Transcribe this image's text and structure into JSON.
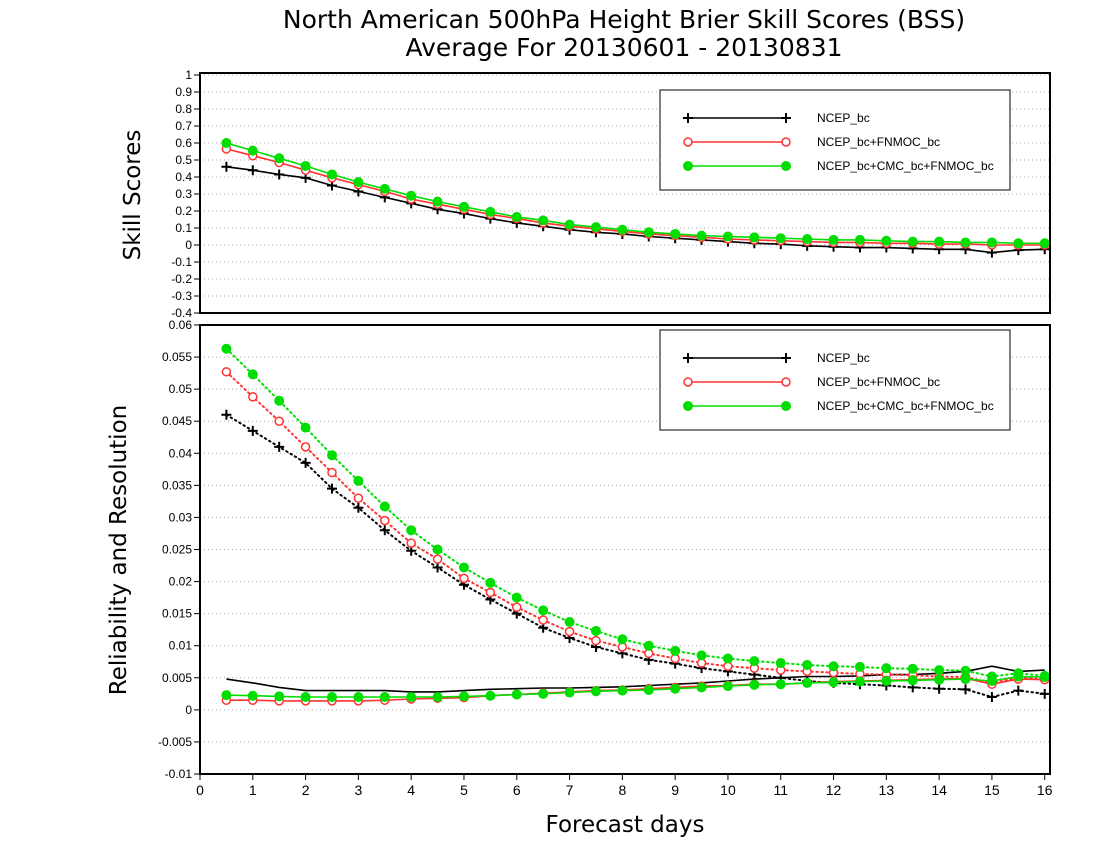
{
  "page": {
    "title_line1": "North American 500hPa Height Brier Skill Scores (BSS)",
    "title_line2": "Average For 20130601 - 20130831",
    "xlabel": "Forecast days"
  },
  "colors": {
    "NCEP_bc": "#000000",
    "NCEP_bc+FNMOC_bc": "#ff3333",
    "NCEP_bc+CMC_bc+FNMOC_bc": "#00dd00",
    "grid": "#aaaaaa"
  },
  "chart_data": [
    {
      "type": "line",
      "ylabel": "Skill Scores",
      "xlim": [
        0,
        16.1
      ],
      "ylim": [
        -0.4,
        1
      ],
      "x_ticks": [
        0,
        1,
        2,
        3,
        4,
        5,
        6,
        7,
        8,
        9,
        10,
        11,
        12,
        13,
        14,
        15,
        16
      ],
      "y_ticks": [
        "1",
        "0.9",
        "0.8",
        "0.7",
        "0.6",
        "0.5",
        "0.4",
        "0.3",
        "0.2",
        "0.1",
        "0",
        "-0.1",
        "-0.2",
        "-0.3",
        "-0.4"
      ],
      "grid": true,
      "legend_position": "top-right",
      "x": [
        0.5,
        1,
        1.5,
        2,
        2.5,
        3,
        3.5,
        4,
        4.5,
        5,
        5.5,
        6,
        6.5,
        7,
        7.5,
        8,
        8.5,
        9,
        9.5,
        10,
        10.5,
        11,
        11.5,
        12,
        12.5,
        13,
        13.5,
        14,
        14.5,
        15,
        15.5,
        16
      ],
      "series": [
        {
          "name": "NCEP_bc",
          "style": "solid",
          "marker": "plus",
          "values": [
            0.46,
            0.44,
            0.415,
            0.395,
            0.35,
            0.315,
            0.28,
            0.245,
            0.21,
            0.185,
            0.155,
            0.13,
            0.11,
            0.09,
            0.075,
            0.065,
            0.05,
            0.04,
            0.03,
            0.02,
            0.01,
            0.005,
            -0.005,
            -0.01,
            -0.015,
            -0.015,
            -0.02,
            -0.025,
            -0.025,
            -0.045,
            -0.03,
            -0.025
          ]
        },
        {
          "name": "NCEP_bc+FNMOC_bc",
          "style": "solid",
          "marker": "open-circle",
          "values": [
            0.565,
            0.525,
            0.485,
            0.44,
            0.395,
            0.355,
            0.315,
            0.27,
            0.24,
            0.21,
            0.18,
            0.155,
            0.13,
            0.11,
            0.095,
            0.08,
            0.065,
            0.055,
            0.045,
            0.035,
            0.03,
            0.025,
            0.02,
            0.015,
            0.015,
            0.01,
            0.01,
            0.005,
            0.005,
            0.0,
            0.0,
            0.0
          ]
        },
        {
          "name": "NCEP_bc+CMC_bc+FNMOC_bc",
          "style": "solid",
          "marker": "filled-circle",
          "values": [
            0.6,
            0.555,
            0.51,
            0.465,
            0.415,
            0.37,
            0.33,
            0.29,
            0.255,
            0.225,
            0.195,
            0.165,
            0.145,
            0.12,
            0.105,
            0.09,
            0.075,
            0.065,
            0.055,
            0.05,
            0.045,
            0.04,
            0.035,
            0.03,
            0.03,
            0.025,
            0.02,
            0.02,
            0.015,
            0.015,
            0.01,
            0.01
          ]
        }
      ]
    },
    {
      "type": "line",
      "ylabel": "Reliability and Resolution",
      "xlabel": "Forecast days",
      "xlim": [
        0,
        16.1
      ],
      "ylim": [
        -0.01,
        0.06
      ],
      "x_ticks": [
        0,
        1,
        2,
        3,
        4,
        5,
        6,
        7,
        8,
        9,
        10,
        11,
        12,
        13,
        14,
        15,
        16
      ],
      "y_ticks": [
        "0.06",
        "0.055",
        "0.05",
        "0.045",
        "0.04",
        "0.035",
        "0.03",
        "0.025",
        "0.02",
        "0.015",
        "0.01",
        "0.005",
        "0",
        "-0.005",
        "-0.01"
      ],
      "grid": true,
      "legend_position": "top-right",
      "x": [
        0.5,
        1,
        1.5,
        2,
        2.5,
        3,
        3.5,
        4,
        4.5,
        5,
        5.5,
        6,
        6.5,
        7,
        7.5,
        8,
        8.5,
        9,
        9.5,
        10,
        10.5,
        11,
        11.5,
        12,
        12.5,
        13,
        13.5,
        14,
        14.5,
        15,
        15.5,
        16
      ],
      "series": [
        {
          "name": "NCEP_bc",
          "style": "dotted",
          "marker": "plus",
          "values": [
            0.046,
            0.0435,
            0.041,
            0.0385,
            0.0345,
            0.0315,
            0.028,
            0.0248,
            0.0222,
            0.0195,
            0.0172,
            0.015,
            0.0128,
            0.0112,
            0.0098,
            0.0088,
            0.0078,
            0.0072,
            0.0065,
            0.006,
            0.0055,
            0.005,
            0.0045,
            0.0042,
            0.004,
            0.0038,
            0.0035,
            0.0033,
            0.0032,
            0.002,
            0.003,
            0.0025
          ]
        },
        {
          "name": "NCEP_bc",
          "style": "solid",
          "marker": "none",
          "values": [
            0.0048,
            0.0042,
            0.0035,
            0.003,
            0.003,
            0.003,
            0.003,
            0.0028,
            0.0028,
            0.003,
            0.0032,
            0.0033,
            0.0034,
            0.0034,
            0.0035,
            0.0036,
            0.0038,
            0.004,
            0.0042,
            0.0045,
            0.0048,
            0.005,
            0.0052,
            0.0052,
            0.0053,
            0.0055,
            0.0055,
            0.0057,
            0.006,
            0.0068,
            0.006,
            0.0062
          ]
        },
        {
          "name": "NCEP_bc+FNMOC_bc",
          "style": "dotted",
          "marker": "open-circle",
          "values": [
            0.0527,
            0.0488,
            0.045,
            0.041,
            0.037,
            0.033,
            0.0295,
            0.026,
            0.0235,
            0.0205,
            0.0183,
            0.016,
            0.014,
            0.0122,
            0.0108,
            0.0098,
            0.0088,
            0.008,
            0.0073,
            0.0068,
            0.0065,
            0.0062,
            0.006,
            0.0058,
            0.0056,
            0.0055,
            0.0054,
            0.0052,
            0.0051,
            0.0042,
            0.005,
            0.0048
          ]
        },
        {
          "name": "NCEP_bc+FNMOC_bc",
          "style": "solid",
          "marker": "open-circle",
          "values": [
            0.0015,
            0.0015,
            0.0014,
            0.0014,
            0.0014,
            0.0014,
            0.0015,
            0.0017,
            0.0018,
            0.0019,
            0.0022,
            0.0024,
            0.0026,
            0.0028,
            0.003,
            0.0031,
            0.0033,
            0.0035,
            0.0037,
            0.0038,
            0.004,
            0.004,
            0.0042,
            0.0044,
            0.0045,
            0.0046,
            0.0047,
            0.0048,
            0.0049,
            0.004,
            0.0048,
            0.0047
          ]
        },
        {
          "name": "NCEP_bc+CMC_bc+FNMOC_bc",
          "style": "dotted",
          "marker": "filled-circle",
          "values": [
            0.0563,
            0.0523,
            0.0482,
            0.044,
            0.0397,
            0.0357,
            0.0317,
            0.028,
            0.025,
            0.0222,
            0.0198,
            0.0175,
            0.0155,
            0.0137,
            0.0123,
            0.011,
            0.01,
            0.0092,
            0.0085,
            0.008,
            0.0076,
            0.0073,
            0.007,
            0.0068,
            0.0067,
            0.0065,
            0.0064,
            0.0062,
            0.0061,
            0.0052,
            0.0057,
            0.0053
          ]
        },
        {
          "name": "NCEP_bc+CMC_bc+FNMOC_bc",
          "style": "solid",
          "marker": "filled-circle",
          "values": [
            0.0023,
            0.0022,
            0.0021,
            0.002,
            0.002,
            0.002,
            0.002,
            0.002,
            0.002,
            0.0021,
            0.0022,
            0.0024,
            0.0025,
            0.0027,
            0.0029,
            0.003,
            0.0031,
            0.0033,
            0.0035,
            0.0037,
            0.0039,
            0.004,
            0.0042,
            0.0043,
            0.0044,
            0.0045,
            0.0046,
            0.0047,
            0.0048,
            0.0045,
            0.0052,
            0.0051
          ]
        }
      ]
    }
  ],
  "legend": {
    "entries": [
      {
        "label": "NCEP_bc",
        "marker": "plus",
        "color_key": "NCEP_bc"
      },
      {
        "label": "NCEP_bc+FNMOC_bc",
        "marker": "open-circle",
        "color_key": "NCEP_bc+FNMOC_bc"
      },
      {
        "label": "NCEP_bc+CMC_bc+FNMOC_bc",
        "marker": "filled-circle",
        "color_key": "NCEP_bc+CMC_bc+FNMOC_bc"
      }
    ]
  }
}
